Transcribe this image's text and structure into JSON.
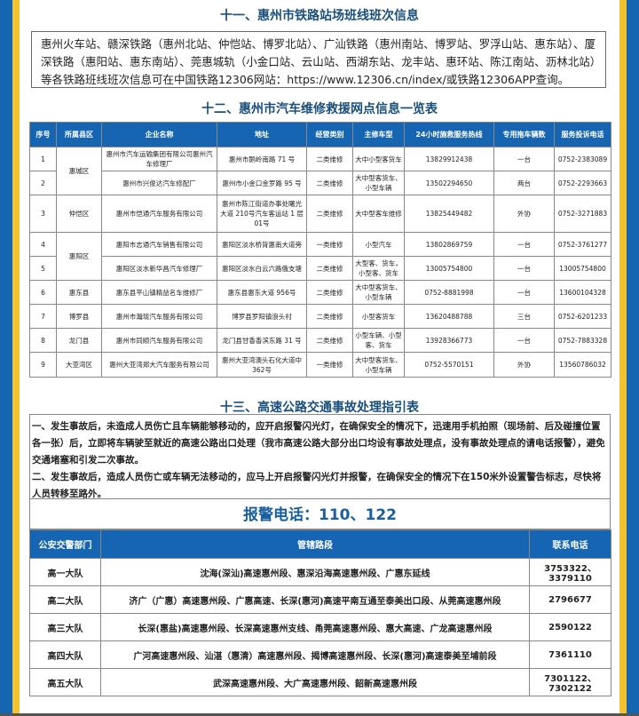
{
  "colors": {
    "blue": "#1565b3",
    "yellow": "#f2c230",
    "title": "#1a4f7a"
  },
  "section11": {
    "title": "十一、惠州市铁路站场班线班次信息",
    "text": "惠州火车站、赣深铁路（惠州北站、仲恺站、博罗北站）、广汕铁路（惠州南站、博罗站、罗浮山站、惠东站）、厦深铁路（惠阳站、惠东南站）、莞惠城轨（小金口站、云山站、西湖东站、龙丰站、惠环站、陈江南站、沥林北站）等各铁路班线班次信息可在中国铁路12306网站：https://www.12306.cn/index/或铁路12306APP查询。"
  },
  "section12": {
    "title": "十二、惠州市汽车维修救援网点信息一览表",
    "headers": [
      "序号",
      "所属县区",
      "企业名称",
      "地址",
      "经营类别",
      "主修车型",
      "24小时施救服务热线",
      "专用拖车辆数",
      "服务投诉电话"
    ],
    "rows": [
      [
        "1",
        "惠城区",
        "惠州市汽车运输集团有限公司惠州汽车修理厂",
        "惠州市鹅岭南路 71 号",
        "二类维修",
        "大中小型客货车",
        "13829912438",
        "一台",
        "0752-2383089"
      ],
      [
        "2",
        "",
        "惠州市兴俊达汽车修配厂",
        "惠州市小金口金罗路 95 号",
        "二类维修",
        "大中型客货车、小型车辆",
        "13502294650",
        "两台",
        "0752-2293663"
      ],
      [
        "3",
        "仲恺区",
        "惠州市恺通汽车服务有限公司",
        "惠州市陈江街道办事处曙光大道 210号汽车客运站 1 层 01号",
        "二类维修",
        "大中型客车维修",
        "13825449482",
        "外协",
        "0752-3271883"
      ],
      [
        "4",
        "惠阳区",
        "惠阳市志通汽车销售有限公司",
        "惠阳区淡水桥背惠南大道旁",
        "一类维修",
        "小型汽车",
        "13802869759",
        "一台",
        "0752-3761277"
      ],
      [
        "5",
        "",
        "惠阳区淡水新华昌汽车修理厂",
        "惠阳区淡水白云六路俄支塘",
        "二类维修",
        "大型客、货车，小型客、货车",
        "13005754800",
        "一台",
        "13005754800"
      ],
      [
        "6",
        "惠东县",
        "惠东县平山镇精益名车维修厂",
        "惠东县惠东大道 956号",
        "二类维修",
        "大中型客货车、小型车辆",
        "0752-8881998",
        "一台",
        "13600104328"
      ],
      [
        "7",
        "博罗县",
        "惠州市瀚珑汽车服务有限公司",
        "博罗县罗阳镇浪头村",
        "二类维修",
        "小型客货车",
        "13620488788",
        "三台",
        "0752-6201233"
      ],
      [
        "8",
        "龙门县",
        "惠州市同顺汽车服务有限公司",
        "龙门县甘香香滨东路 31 号",
        "二类维修",
        "小型车辆、小型客、货车",
        "13928366773",
        "一台",
        "0752-7883328"
      ],
      [
        "9",
        "大亚湾区",
        "惠州大亚湾郑大汽车服务有限公司",
        "惠州大亚湾澳头石化大道中 362号",
        "一类维修",
        "大中型客货车、小型车辆",
        "0752-5570151",
        "外协",
        "13560786032"
      ]
    ]
  },
  "section13": {
    "title": "十三、高速公路交通事故处理指引表",
    "para1": "一、发生事故后，未造成人员伤亡且车辆能够移动的，应开启报警闪光灯，在确保安全的情况下，迅速用手机拍照（现场前、后及碰撞位置各一张）后，立即将车辆驶至就近的高速公路出口处理（我市高速公路大部分出口均设有事故处理点，没有事故处理点的请电话报警），避免交通堵塞和引发二次事故。",
    "para2": "二、发生事故后，造成人员伤亡或车辆无法移动的，应马上开启报警闪光灯并报警，在确保安全的情况下在150米外设置警告标志，尽快将人员转移至路外。",
    "hotline": "报警电话：110、122",
    "headers": [
      "公安交警部门",
      "管辖路段",
      "联系电话"
    ],
    "rows": [
      [
        "高一大队",
        "沈海(深汕)高速惠州段、惠深沿海高速惠州段、广惠东延线",
        "3753322、3379110"
      ],
      [
        "高二大队",
        "济广（广惠）高速惠州段、广惠高速、长深(惠河)高速平南互通至泰美出口段、从莞高速惠州段",
        "2796677"
      ],
      [
        "高三大队",
        "长深(惠盐)高速惠州段、长深高速惠州支线、甬莞高速惠州段、惠大高速、广龙高速惠州段",
        "2590122"
      ],
      [
        "高四大队",
        "广河高速惠州段、汕湛（惠清）高速惠州段、揭博高速惠州段、长深(惠河)高速泰美至埔前段",
        "7361110"
      ],
      [
        "高五大队",
        "武深高速惠州段、大广高速惠州段、韶新高速惠州段",
        "7301122、7302122"
      ]
    ]
  }
}
